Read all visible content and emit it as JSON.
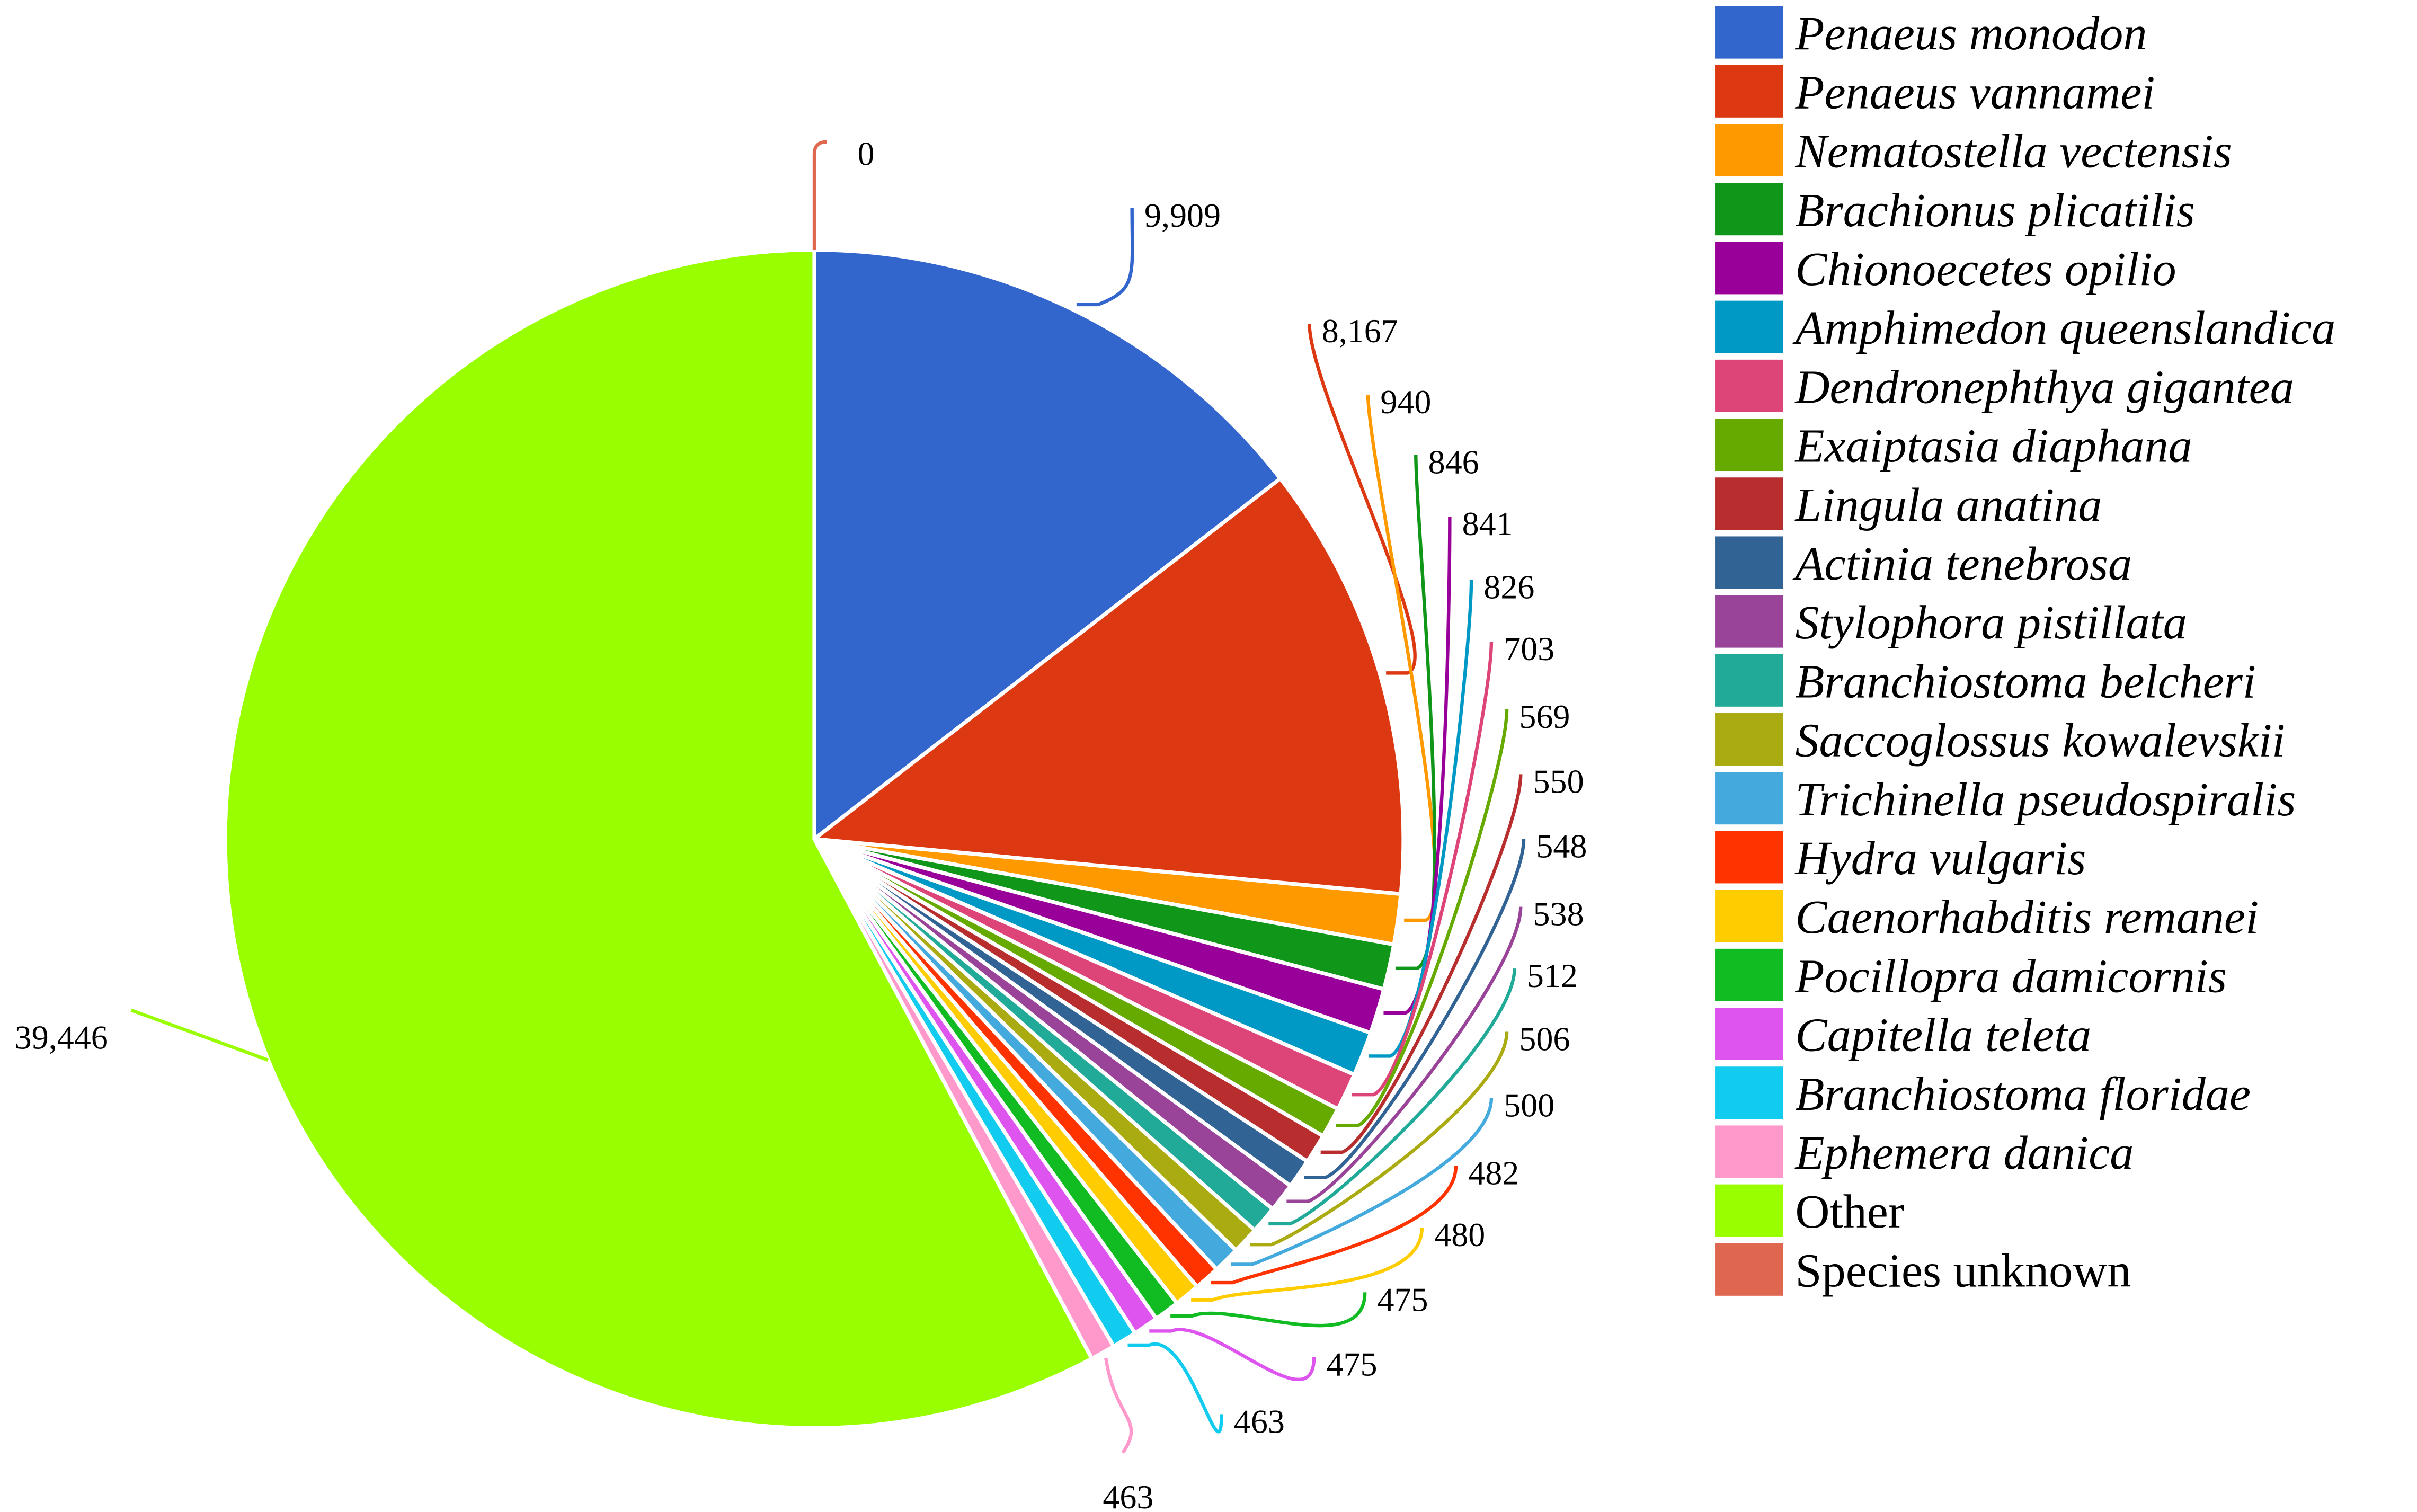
{
  "chart_data": {
    "type": "pie",
    "series": [
      {
        "name": "Penaeus monodon",
        "value": 9909,
        "label": "9,909",
        "color": "#3366cc",
        "italic": true
      },
      {
        "name": "Penaeus vannamei",
        "value": 8167,
        "label": "8,167",
        "color": "#dc3912",
        "italic": true
      },
      {
        "name": "Nematostella vectensis",
        "value": 940,
        "label": "940",
        "color": "#ff9900",
        "italic": true
      },
      {
        "name": "Brachionus plicatilis",
        "value": 846,
        "label": "846",
        "color": "#109618",
        "italic": true
      },
      {
        "name": "Chionoecetes opilio",
        "value": 841,
        "label": "841",
        "color": "#990099",
        "italic": true
      },
      {
        "name": "Amphimedon queenslandica",
        "value": 826,
        "label": "826",
        "color": "#0099c6",
        "italic": true
      },
      {
        "name": "Dendronephthya gigantea",
        "value": 703,
        "label": "703",
        "color": "#dd4477",
        "italic": true
      },
      {
        "name": "Exaiptasia diaphana",
        "value": 569,
        "label": "569",
        "color": "#66aa00",
        "italic": true
      },
      {
        "name": "Lingula anatina",
        "value": 550,
        "label": "550",
        "color": "#b82e2e",
        "italic": true
      },
      {
        "name": "Actinia tenebrosa",
        "value": 548,
        "label": "548",
        "color": "#316395",
        "italic": true
      },
      {
        "name": "Stylophora pistillata",
        "value": 538,
        "label": "538",
        "color": "#994499",
        "italic": true
      },
      {
        "name": "Branchiostoma belcheri",
        "value": 512,
        "label": "512",
        "color": "#22aa99",
        "italic": true
      },
      {
        "name": "Saccoglossus kowalevskii",
        "value": 506,
        "label": "506",
        "color": "#aaaa11",
        "italic": true
      },
      {
        "name": "Trichinella pseudospiralis",
        "value": 500,
        "label": "500",
        "color": "#44aadd",
        "italic": true
      },
      {
        "name": "Hydra vulgaris",
        "value": 482,
        "label": "482",
        "color": "#ff3300",
        "italic": true
      },
      {
        "name": "Caenorhabditis remanei",
        "value": 480,
        "label": "480",
        "color": "#ffcc00",
        "italic": true
      },
      {
        "name": "Pocillopra damicornis",
        "value": 475,
        "label": "475",
        "color": "#11bb22",
        "italic": true
      },
      {
        "name": "Capitella teleta",
        "value": 475,
        "label": "475",
        "color": "#dd55ee",
        "italic": true
      },
      {
        "name": "Branchiostoma floridae",
        "value": 463,
        "label": "463",
        "color": "#11ccee",
        "italic": true
      },
      {
        "name": "Ephemera danica",
        "value": 463,
        "label": "463",
        "color": "#ff99cc",
        "italic": true
      },
      {
        "name": "Other",
        "value": 39446,
        "label": "39,446",
        "color": "#99ff00",
        "italic": false
      },
      {
        "name": "Species unknown",
        "value": 0,
        "label": "0",
        "color": "#e0674f",
        "italic": false
      }
    ],
    "start_angle_deg": 0,
    "direction": "clockwise",
    "legend_position": "right",
    "labels": "outside with leader lines"
  }
}
